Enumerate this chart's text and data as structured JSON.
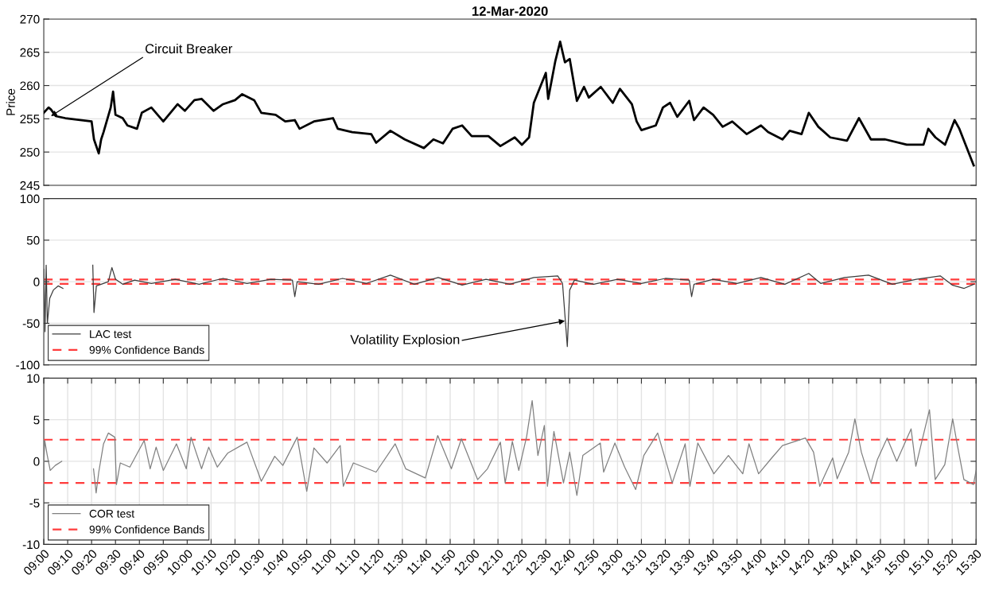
{
  "chart_data": [
    {
      "type": "line",
      "title": "12-Mar-2020",
      "ylabel": "Price",
      "ylim": [
        245,
        270
      ],
      "yticks": [
        245,
        250,
        255,
        260,
        265,
        270
      ],
      "xlim": [
        "2020-03-12T09:00:00",
        "2020-03-12T15:30:00"
      ],
      "grid": "y",
      "tick_labels": "y",
      "legend": false,
      "annotations": [
        {
          "text": "Circuit Breaker",
          "x": "2020-03-12T09:03:00",
          "y": 255.4
        }
      ],
      "series": [
        {
          "color": "#000000",
          "x": [
            "2020-03-12T09:00:00",
            "2020-03-12T09:02:00",
            "2020-03-12T09:03:00",
            "2020-03-12T09:05:00",
            "2020-03-12T09:09:00",
            "2020-03-12T09:20:00",
            "2020-03-12T09:21:00",
            "2020-03-12T09:23:00",
            "2020-03-12T09:24:00",
            "2020-03-12T09:25:00",
            "2020-03-12T09:28:00",
            "2020-03-12T09:29:00",
            "2020-03-12T09:30:00",
            "2020-03-12T09:33:00",
            "2020-03-12T09:35:00",
            "2020-03-12T09:39:00",
            "2020-03-12T09:41:00",
            "2020-03-12T09:45:00",
            "2020-03-12T09:50:00",
            "2020-03-12T09:56:00",
            "2020-03-12T09:59:00",
            "2020-03-12T10:03:00",
            "2020-03-12T10:06:00",
            "2020-03-12T10:11:00",
            "2020-03-12T10:15:00",
            "2020-03-12T10:20:00",
            "2020-03-12T10:23:00",
            "2020-03-12T10:28:00",
            "2020-03-12T10:31:00",
            "2020-03-12T10:37:00",
            "2020-03-12T10:41:00",
            "2020-03-12T10:45:00",
            "2020-03-12T10:47:00",
            "2020-03-12T10:53:00",
            "2020-03-12T11:01:00",
            "2020-03-12T11:03:00",
            "2020-03-12T11:09:00",
            "2020-03-12T11:17:00",
            "2020-03-12T11:19:00",
            "2020-03-12T11:25:00",
            "2020-03-12T11:31:00",
            "2020-03-12T11:39:00",
            "2020-03-12T11:43:00",
            "2020-03-12T11:47:00",
            "2020-03-12T11:51:00",
            "2020-03-12T11:55:00",
            "2020-03-12T11:59:00",
            "2020-03-12T12:06:00",
            "2020-03-12T12:11:00",
            "2020-03-12T12:17:00",
            "2020-03-12T12:20:00",
            "2020-03-12T12:23:00",
            "2020-03-12T12:25:00",
            "2020-03-12T12:30:00",
            "2020-03-12T12:31:00",
            "2020-03-12T12:34:00",
            "2020-03-12T12:36:00",
            "2020-03-12T12:38:00",
            "2020-03-12T12:40:00",
            "2020-03-12T12:43:00",
            "2020-03-12T12:46:00",
            "2020-03-12T12:48:00",
            "2020-03-12T12:53:00",
            "2020-03-12T12:58:00",
            "2020-03-12T13:01:00",
            "2020-03-12T13:06:00",
            "2020-03-12T13:08:00",
            "2020-03-12T13:10:00",
            "2020-03-12T13:16:00",
            "2020-03-12T13:19:00",
            "2020-03-12T13:22:00",
            "2020-03-12T13:25:00",
            "2020-03-12T13:30:00",
            "2020-03-12T13:32:00",
            "2020-03-12T13:36:00",
            "2020-03-12T13:40:00",
            "2020-03-12T13:44:00",
            "2020-03-12T13:48:00",
            "2020-03-12T13:54:00",
            "2020-03-12T14:00:00",
            "2020-03-12T14:03:00",
            "2020-03-12T14:09:00",
            "2020-03-12T14:12:00",
            "2020-03-12T14:17:00",
            "2020-03-12T14:20:00",
            "2020-03-12T14:24:00",
            "2020-03-12T14:29:00",
            "2020-03-12T14:36:00",
            "2020-03-12T14:41:00",
            "2020-03-12T14:46:00",
            "2020-03-12T14:52:00",
            "2020-03-12T15:01:00",
            "2020-03-12T15:08:00",
            "2020-03-12T15:10:00",
            "2020-03-12T15:13:00",
            "2020-03-12T15:17:00",
            "2020-03-12T15:21:00",
            "2020-03-12T15:23:00",
            "2020-03-12T15:29:00"
          ],
          "values": [
            255.9,
            256.7,
            256.4,
            255.4,
            255.1,
            254.6,
            251.9,
            249.8,
            251.9,
            253.0,
            256.7,
            259.1,
            255.6,
            255.1,
            254.0,
            253.5,
            255.9,
            256.7,
            254.6,
            257.2,
            256.2,
            257.8,
            258.0,
            256.2,
            257.2,
            257.8,
            258.7,
            257.8,
            255.9,
            255.6,
            254.6,
            254.8,
            253.5,
            254.6,
            255.1,
            253.5,
            253.0,
            252.7,
            251.4,
            253.2,
            251.9,
            250.6,
            251.9,
            251.3,
            253.5,
            254.0,
            252.4,
            252.4,
            250.9,
            252.2,
            251.1,
            252.2,
            257.4,
            261.9,
            258.0,
            263.7,
            266.6,
            263.5,
            264.0,
            257.7,
            259.8,
            258.2,
            259.8,
            257.4,
            259.5,
            257.2,
            254.6,
            253.3,
            254.0,
            256.7,
            257.4,
            255.3,
            257.7,
            254.8,
            256.7,
            255.6,
            253.8,
            254.6,
            252.7,
            254.0,
            253.0,
            251.9,
            253.2,
            252.7,
            255.9,
            253.8,
            252.2,
            251.7,
            255.1,
            251.9,
            251.9,
            251.1,
            251.1,
            253.5,
            252.2,
            251.1,
            254.8,
            253.5,
            248.0
          ]
        }
      ]
    },
    {
      "type": "line",
      "ylim": [
        -100,
        100
      ],
      "yticks": [
        -100,
        -50,
        0,
        50,
        100
      ],
      "xlim": [
        "2020-03-12T09:00:00",
        "2020-03-12T15:30:00"
      ],
      "grid": "y",
      "tick_labels": "y",
      "legend": "bottom left",
      "annotations": [
        {
          "text": "Volatility Explosion",
          "x": "2020-03-12T12:38:00",
          "y": -47
        }
      ],
      "ref_lines": [
        {
          "axis": "y",
          "value": 2.6,
          "label": "99% Confidence Bands",
          "color": "#ff3b3b",
          "line_style": "dashed"
        },
        {
          "axis": "y",
          "value": -2.6,
          "color": "#ff3b3b",
          "line_style": "dashed"
        }
      ],
      "series": [
        {
          "name": "LAC test",
          "color": "#3c3c3c",
          "x": [
            "2020-03-12T09:00:00",
            "2020-03-12T09:00:30",
            "2020-03-12T09:01:00",
            "2020-03-12T09:01:30",
            "2020-03-12T09:02:30",
            "2020-03-12T09:04:00",
            "2020-03-12T09:06:00",
            "2020-03-12T09:08:00",
            "2020-03-12T09:14:00",
            "2020-03-12T09:20:30",
            "2020-03-12T09:21:00",
            "2020-03-12T09:22:00",
            "2020-03-12T09:24:00",
            "2020-03-12T09:27:00",
            "2020-03-12T09:28:30",
            "2020-03-12T09:30:00",
            "2020-03-12T09:33:00",
            "2020-03-12T09:38:00",
            "2020-03-12T09:45:00",
            "2020-03-12T09:55:00",
            "2020-03-12T10:05:00",
            "2020-03-12T10:15:00",
            "2020-03-12T10:25:00",
            "2020-03-12T10:35:00",
            "2020-03-12T10:44:00",
            "2020-03-12T10:45:00",
            "2020-03-12T10:46:00",
            "2020-03-12T10:55:00",
            "2020-03-12T11:05:00",
            "2020-03-12T11:15:00",
            "2020-03-12T11:25:00",
            "2020-03-12T11:35:00",
            "2020-03-12T11:45:00",
            "2020-03-12T11:55:00",
            "2020-03-12T12:05:00",
            "2020-03-12T12:15:00",
            "2020-03-12T12:25:00",
            "2020-03-12T12:35:00",
            "2020-03-12T12:37:00",
            "2020-03-12T12:39:00",
            "2020-03-12T12:40:00",
            "2020-03-12T12:42:00",
            "2020-03-12T12:50:00",
            "2020-03-12T13:00:00",
            "2020-03-12T13:10:00",
            "2020-03-12T13:20:00",
            "2020-03-12T13:30:00",
            "2020-03-12T13:31:00",
            "2020-03-12T13:32:00",
            "2020-03-12T13:40:00",
            "2020-03-12T13:50:00",
            "2020-03-12T14:00:00",
            "2020-03-12T14:10:00",
            "2020-03-12T14:20:00",
            "2020-03-12T14:25:00",
            "2020-03-12T14:35:00",
            "2020-03-12T14:45:00",
            "2020-03-12T14:55:00",
            "2020-03-12T15:05:00",
            "2020-03-12T15:15:00",
            "2020-03-12T15:20:00",
            "2020-03-12T15:25:00",
            "2020-03-12T15:29:00"
          ],
          "values": [
            15,
            -60,
            20,
            -50,
            -20,
            -10,
            -5,
            -8,
            null,
            20,
            -37,
            -5,
            -3,
            0,
            17,
            3,
            -3,
            2,
            -2,
            3,
            -3,
            4,
            -2,
            3,
            2,
            -18,
            0,
            -3,
            4,
            -2,
            8,
            -3,
            5,
            -4,
            3,
            -3,
            5,
            7,
            -2,
            -78,
            -10,
            2,
            -3,
            3,
            -2,
            4,
            2,
            -18,
            -3,
            3,
            -2,
            5,
            -3,
            10,
            -2,
            5,
            8,
            -3,
            3,
            7,
            -4,
            -8,
            -3
          ]
        }
      ]
    },
    {
      "type": "line",
      "ylim": [
        -10,
        10
      ],
      "yticks": [
        -10,
        -5,
        0,
        5,
        10
      ],
      "xlim": [
        "2020-03-12T09:00:00",
        "2020-03-12T15:30:00"
      ],
      "grid": true,
      "legend": "bottom left",
      "xticks": [
        {
          "value": "2020-03-12T09:00:00",
          "label": "09:00"
        },
        {
          "value": "2020-03-12T09:10:00",
          "label": "09:10"
        },
        {
          "value": "2020-03-12T09:20:00",
          "label": "09:20"
        },
        {
          "value": "2020-03-12T09:30:00",
          "label": "09:30"
        },
        {
          "value": "2020-03-12T09:40:00",
          "label": "09:40"
        },
        {
          "value": "2020-03-12T09:50:00",
          "label": "09:50"
        },
        {
          "value": "2020-03-12T10:00:00",
          "label": "10:00"
        },
        {
          "value": "2020-03-12T10:10:00",
          "label": "10:10"
        },
        {
          "value": "2020-03-12T10:20:00",
          "label": "10:20"
        },
        {
          "value": "2020-03-12T10:30:00",
          "label": "10:30"
        },
        {
          "value": "2020-03-12T10:40:00",
          "label": "10:40"
        },
        {
          "value": "2020-03-12T10:50:00",
          "label": "10:50"
        },
        {
          "value": "2020-03-12T11:00:00",
          "label": "11:00"
        },
        {
          "value": "2020-03-12T11:10:00",
          "label": "11:10"
        },
        {
          "value": "2020-03-12T11:20:00",
          "label": "11:20"
        },
        {
          "value": "2020-03-12T11:30:00",
          "label": "11:30"
        },
        {
          "value": "2020-03-12T11:40:00",
          "label": "11:40"
        },
        {
          "value": "2020-03-12T11:50:00",
          "label": "11:50"
        },
        {
          "value": "2020-03-12T12:00:00",
          "label": "12:00"
        },
        {
          "value": "2020-03-12T12:10:00",
          "label": "12:10"
        },
        {
          "value": "2020-03-12T12:20:00",
          "label": "12:20"
        },
        {
          "value": "2020-03-12T12:30:00",
          "label": "12:30"
        },
        {
          "value": "2020-03-12T12:40:00",
          "label": "12:40"
        },
        {
          "value": "2020-03-12T12:50:00",
          "label": "12:50"
        },
        {
          "value": "2020-03-12T13:00:00",
          "label": "13:00"
        },
        {
          "value": "2020-03-12T13:10:00",
          "label": "13:10"
        },
        {
          "value": "2020-03-12T13:20:00",
          "label": "13:20"
        },
        {
          "value": "2020-03-12T13:30:00",
          "label": "13:30"
        },
        {
          "value": "2020-03-12T13:40:00",
          "label": "13:40"
        },
        {
          "value": "2020-03-12T13:50:00",
          "label": "13:50"
        },
        {
          "value": "2020-03-12T14:00:00",
          "label": "14:00"
        },
        {
          "value": "2020-03-12T14:10:00",
          "label": "14:10"
        },
        {
          "value": "2020-03-12T14:20:00",
          "label": "14:20"
        },
        {
          "value": "2020-03-12T14:30:00",
          "label": "14:30"
        },
        {
          "value": "2020-03-12T14:40:00",
          "label": "14:40"
        },
        {
          "value": "2020-03-12T14:50:00",
          "label": "14:50"
        },
        {
          "value": "2020-03-12T15:00:00",
          "label": "15:00"
        },
        {
          "value": "2020-03-12T15:10:00",
          "label": "15:10"
        },
        {
          "value": "2020-03-12T15:20:00",
          "label": "15:20"
        },
        {
          "value": "2020-03-12T15:30:00",
          "label": "15:30"
        }
      ],
      "ref_lines": [
        {
          "axis": "y",
          "value": 2.6,
          "label": "99% Confidence Bands",
          "color": "#ff3b3b",
          "line_style": "dashed"
        },
        {
          "axis": "y",
          "value": -2.6,
          "color": "#ff3b3b",
          "line_style": "dashed"
        }
      ],
      "series": [
        {
          "name": "COR test",
          "color": "#808080",
          "x": [
            "2020-03-12T09:00:00",
            "2020-03-12T09:00:24",
            "2020-03-12T09:01:24",
            "2020-03-12T09:02:42",
            "2020-03-12T09:04:48",
            "2020-03-12T09:07:30",
            "2020-03-12T09:14:00",
            "2020-03-12T09:20:48",
            "2020-03-12T09:21:54",
            "2020-03-12T09:23:00",
            "2020-03-12T09:25:00",
            "2020-03-12T09:27:00",
            "2020-03-12T09:29:42",
            "2020-03-12T09:30:24",
            "2020-03-12T09:32:00",
            "2020-03-12T09:36:00",
            "2020-03-12T09:42:00",
            "2020-03-12T09:44:30",
            "2020-03-12T09:47:00",
            "2020-03-12T09:50:00",
            "2020-03-12T09:55:30",
            "2020-03-12T09:59:36",
            "2020-03-12T10:01:36",
            "2020-03-12T10:06:00",
            "2020-03-12T10:09:00",
            "2020-03-12T10:12:36",
            "2020-03-12T10:17:00",
            "2020-03-12T10:25:00",
            "2020-03-12T10:31:00",
            "2020-03-12T10:36:36",
            "2020-03-12T10:40:00",
            "2020-03-12T10:46:00",
            "2020-03-12T10:50:00",
            "2020-03-12T10:53:00",
            "2020-03-12T10:58:30",
            "2020-03-12T11:04:00",
            "2020-03-12T11:05:18",
            "2020-03-12T11:09:30",
            "2020-03-12T11:19:00",
            "2020-03-12T11:27:00",
            "2020-03-12T11:31:24",
            "2020-03-12T11:39:36",
            "2020-03-12T11:44:48",
            "2020-03-12T11:50:30",
            "2020-03-12T11:54:42",
            "2020-03-12T12:01:30",
            "2020-03-12T12:05:36",
            "2020-03-12T12:11:00",
            "2020-03-12T12:13:00",
            "2020-03-12T12:16:00",
            "2020-03-12T12:18:42",
            "2020-03-12T12:22:00",
            "2020-03-12T12:24:18",
            "2020-03-12T12:26:42",
            "2020-03-12T12:29:24",
            "2020-03-12T12:30:42",
            "2020-03-12T12:33:24",
            "2020-03-12T12:37:24",
            "2020-03-12T12:40:00",
            "2020-03-12T12:43:00",
            "2020-03-12T12:45:30",
            "2020-03-12T12:52:48",
            "2020-03-12T12:54:12",
            "2020-03-12T12:58:54",
            "2020-03-12T13:03:00",
            "2020-03-12T13:07:36",
            "2020-03-12T13:11:00",
            "2020-03-12T13:16:48",
            "2020-03-12T13:22:54",
            "2020-03-12T13:28:18",
            "2020-03-12T13:30:18",
            "2020-03-12T13:33:36",
            "2020-03-12T13:40:18",
            "2020-03-12T13:46:24",
            "2020-03-12T13:52:24",
            "2020-03-12T13:55:00",
            "2020-03-12T13:59:00",
            "2020-03-12T14:04:30",
            "2020-03-12T14:09:00",
            "2020-03-12T14:18:36",
            "2020-03-12T14:22:00",
            "2020-03-12T14:24:36",
            "2020-03-12T14:30:00",
            "2020-03-12T14:31:54",
            "2020-03-12T14:36:42",
            "2020-03-12T14:39:18",
            "2020-03-12T14:42:00",
            "2020-03-12T14:46:00",
            "2020-03-12T14:48:42",
            "2020-03-12T14:52:48",
            "2020-03-12T14:56:48",
            "2020-03-12T15:02:48",
            "2020-03-12T15:04:48",
            "2020-03-12T15:10:30",
            "2020-03-12T15:12:54",
            "2020-03-12T15:16:54",
            "2020-03-12T15:20:12",
            "2020-03-12T15:22:12",
            "2020-03-12T15:24:54",
            "2020-03-12T15:28:54",
            "2020-03-12T15:30:00"
          ],
          "values": [
            -0.5,
            2.5,
            0.8,
            -1.1,
            -0.5,
            0.0,
            null,
            -0.9,
            -3.8,
            -1.3,
            2.1,
            3.4,
            2.9,
            -2.8,
            -0.2,
            -0.7,
            2.5,
            -0.9,
            1.7,
            -1.1,
            2.1,
            -0.9,
            2.9,
            -0.9,
            1.7,
            -0.7,
            1.0,
            2.3,
            -2.4,
            0.6,
            -0.5,
            2.9,
            -3.6,
            1.6,
            -0.2,
            1.9,
            -3.0,
            -0.2,
            -1.3,
            2.1,
            -0.9,
            -2.0,
            3.1,
            -0.9,
            2.7,
            -2.2,
            -0.9,
            2.3,
            -2.6,
            2.4,
            -1.1,
            3.0,
            7.3,
            0.7,
            4.3,
            -3.0,
            3.6,
            -2.6,
            1.1,
            -4.1,
            0.7,
            2.2,
            -1.3,
            2.2,
            -0.7,
            -3.4,
            0.7,
            3.4,
            -2.6,
            2.1,
            -3.0,
            2.2,
            -1.5,
            0.7,
            -1.5,
            2.1,
            -1.5,
            0.4,
            1.9,
            2.8,
            1.1,
            -3.0,
            0.4,
            -2.1,
            1.1,
            5.1,
            1.1,
            -2.6,
            0.2,
            2.8,
            0.0,
            3.9,
            -0.6,
            6.2,
            -2.2,
            -0.4,
            5.1,
            1.9,
            -2.2,
            -2.8,
            -1.1
          ]
        }
      ]
    }
  ]
}
